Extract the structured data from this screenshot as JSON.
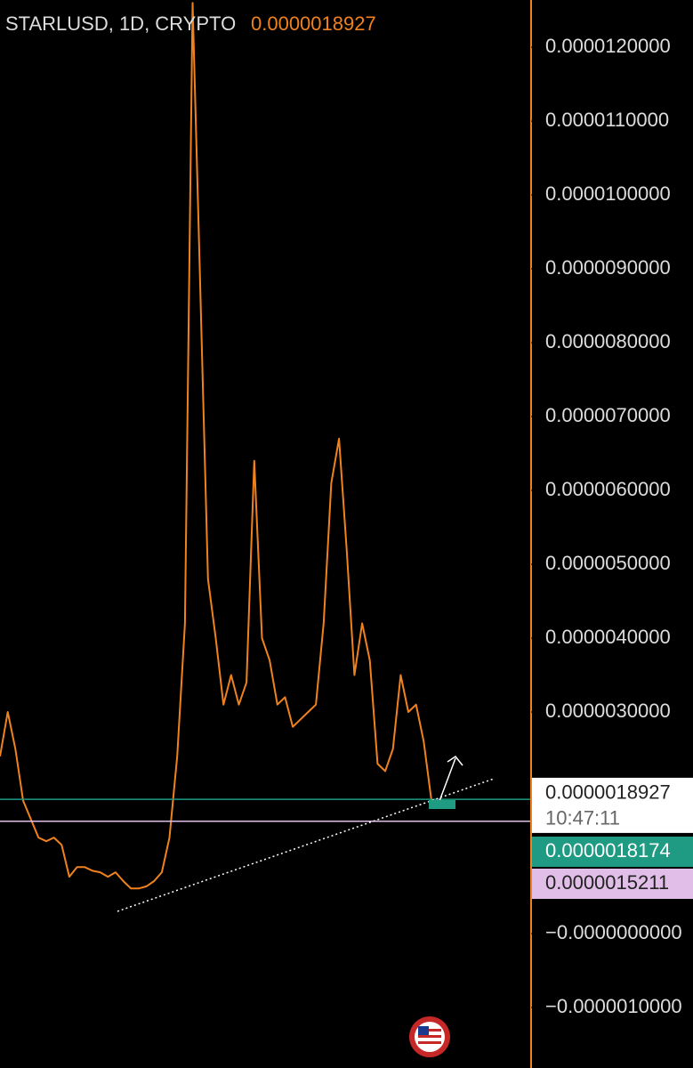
{
  "chart_data": {
    "type": "line",
    "title": "STARLUSD, 1D, CRYPTO",
    "last_price": {
      "value": 1.8927e-06,
      "label": "0.0000018927"
    },
    "countdown": "10:47:11",
    "series": [
      {
        "color": "#f0821e",
        "values": [
          2.4e-06,
          3e-06,
          2.5e-06,
          1.8e-06,
          1.55e-06,
          1.3e-06,
          1.25e-06,
          1.3e-06,
          1.2e-06,
          7.7e-07,
          9e-07,
          9e-07,
          8.5e-07,
          8.3e-07,
          7.7e-07,
          8.3e-07,
          7.1e-07,
          6.1e-07,
          6.1e-07,
          6.4e-07,
          7.1e-07,
          8.3e-07,
          1.3e-06,
          2.4e-06,
          4.2e-06,
          1.26e-05,
          8.7e-06,
          4.8e-06,
          4e-06,
          3.1e-06,
          3.5e-06,
          3.1e-06,
          3.4e-06,
          6.4e-06,
          4e-06,
          3.7e-06,
          3.1e-06,
          3.2e-06,
          2.8e-06,
          2.9e-06,
          3e-06,
          3.1e-06,
          4.2e-06,
          6.1e-06,
          6.7e-06,
          5.2e-06,
          3.5e-06,
          4.2e-06,
          3.7e-06,
          2.3e-06,
          2.2e-06,
          2.5e-06,
          3.5e-06,
          3e-06,
          3.1e-06,
          2.6e-06,
          1.8e-06
        ]
      }
    ],
    "price_lines": [
      {
        "value": 1.8174e-06,
        "label": "0.0000018174",
        "color": "#1e9b82"
      },
      {
        "value": 1.5211e-06,
        "label": "0.0000015211",
        "color": "#e1bee7"
      }
    ],
    "ylim": [
      -1.82e-06,
      1.264e-05
    ],
    "yticks": [
      {
        "value": 1.2e-05,
        "label": "0.0000120000"
      },
      {
        "value": 1.1e-05,
        "label": "0.0000110000"
      },
      {
        "value": 1e-05,
        "label": "0.0000100000"
      },
      {
        "value": 9e-06,
        "label": "0.0000090000"
      },
      {
        "value": 8e-06,
        "label": "0.0000080000"
      },
      {
        "value": 7e-06,
        "label": "0.0000070000"
      },
      {
        "value": 6e-06,
        "label": "0.0000060000"
      },
      {
        "value": 5e-06,
        "label": "0.0000050000"
      },
      {
        "value": 4e-06,
        "label": "0.0000040000"
      },
      {
        "value": 3e-06,
        "label": "0.0000030000"
      },
      {
        "value": 0,
        "label": "−0.0000000000"
      },
      {
        "value": -1e-06,
        "label": "−0.0000010000"
      }
    ]
  }
}
